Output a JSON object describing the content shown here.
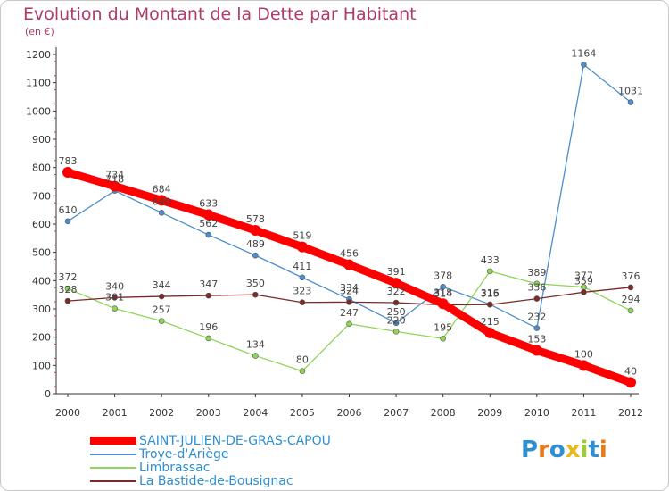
{
  "header": {
    "title": "Evolution du Montant de la Dette par Habitant",
    "unit": "(en €)"
  },
  "logo": {
    "text": "Proxiti",
    "letter_colors": [
      "#2f8fd0",
      "#e87a1e",
      "#2f8fd0",
      "#e8b81e",
      "#9acd32",
      "#2f8fd0",
      "#e87a1e"
    ]
  },
  "chart_data": {
    "type": "line",
    "title": "Evolution du Montant de la Dette par Habitant",
    "ylabel": "(en €)",
    "xlabel": "",
    "x": [
      "2000",
      "2001",
      "2002",
      "2003",
      "2004",
      "2005",
      "2006",
      "2007",
      "2008",
      "2009",
      "2010",
      "2011",
      "2012"
    ],
    "ylim": [
      0,
      1200
    ],
    "yticks": [
      0,
      100,
      200,
      300,
      400,
      500,
      600,
      700,
      800,
      900,
      1000,
      1100,
      1200
    ],
    "grid": false,
    "legend_position": "bottom-left",
    "series": [
      {
        "name": "SAINT-JULIEN-DE-GRAS-CAPOU",
        "color": "#ff0000",
        "values": [
          783,
          734,
          684,
          633,
          578,
          519,
          456,
          391,
          318,
          215,
          153,
          100,
          40
        ]
      },
      {
        "name": "Troye-d'Ariège",
        "color": "#4d8fcc",
        "values": [
          610,
          718,
          640,
          562,
          489,
          411,
          334,
          250,
          378,
          316,
          232,
          1164,
          1031
        ]
      },
      {
        "name": "Limbrassac",
        "color": "#8fd45a",
        "values": [
          372,
          301,
          257,
          196,
          134,
          80,
          247,
          220,
          195,
          433,
          389,
          377,
          294
        ]
      },
      {
        "name": "La Bastide-de-Bousignac",
        "color": "#7a2a2a",
        "values": [
          328,
          340,
          344,
          347,
          350,
          323,
          324,
          322,
          314,
          315,
          336,
          359,
          376
        ]
      }
    ]
  }
}
